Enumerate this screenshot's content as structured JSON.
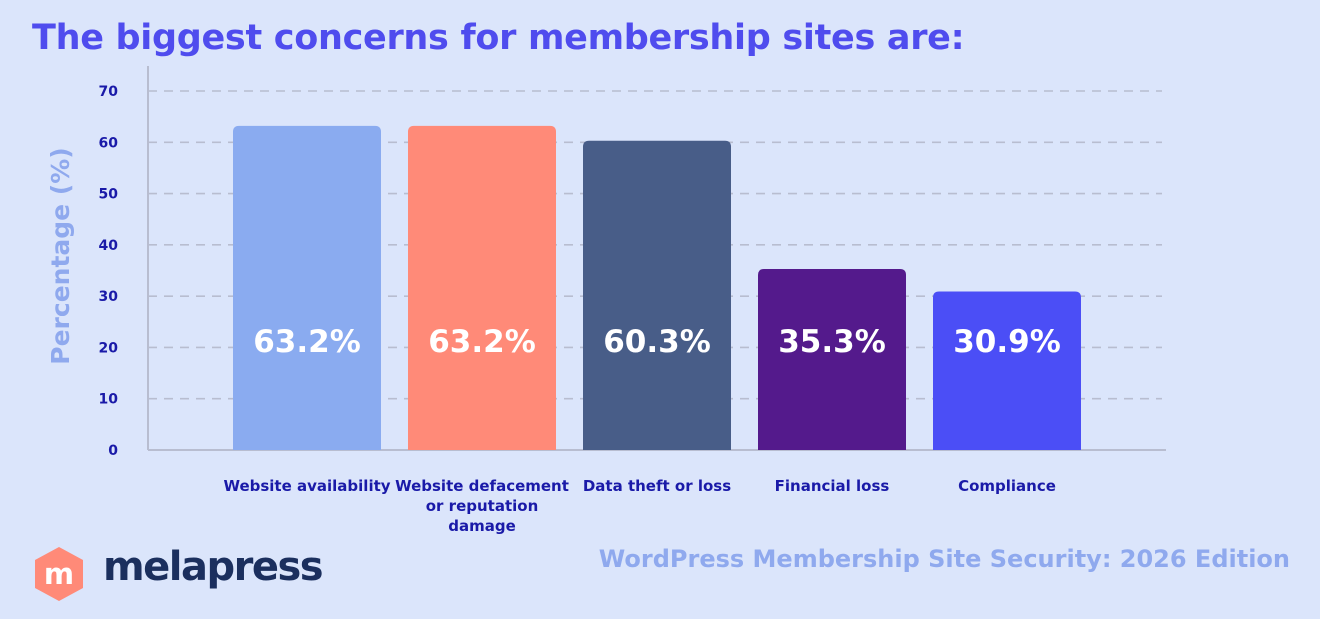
{
  "title": "The biggest concerns for membership sites are:",
  "chart_data": {
    "type": "bar",
    "categories": [
      "Website availability",
      "Website defacement or reputation damage",
      "Data theft or loss",
      "Financial loss",
      "Compliance"
    ],
    "values": [
      63.2,
      63.2,
      60.3,
      35.3,
      30.9
    ],
    "value_labels": [
      "63.2%",
      "63.2%",
      "60.3%",
      "35.3%",
      "30.9%"
    ],
    "colors": [
      "#8aabf0",
      "#ff8a78",
      "#485d88",
      "#541a8c",
      "#4b4ef6"
    ],
    "ylabel": "Percentage (%)",
    "ylim": [
      0,
      70
    ],
    "yticks": [
      "0",
      "10",
      "20",
      "30",
      "40",
      "50",
      "60",
      "70"
    ],
    "grid": true
  },
  "brand": {
    "name": "melapress",
    "logo_letter": "m",
    "logo_color": "#ff8a78"
  },
  "source": "WordPress Membership Site Security: 2026 Edition"
}
